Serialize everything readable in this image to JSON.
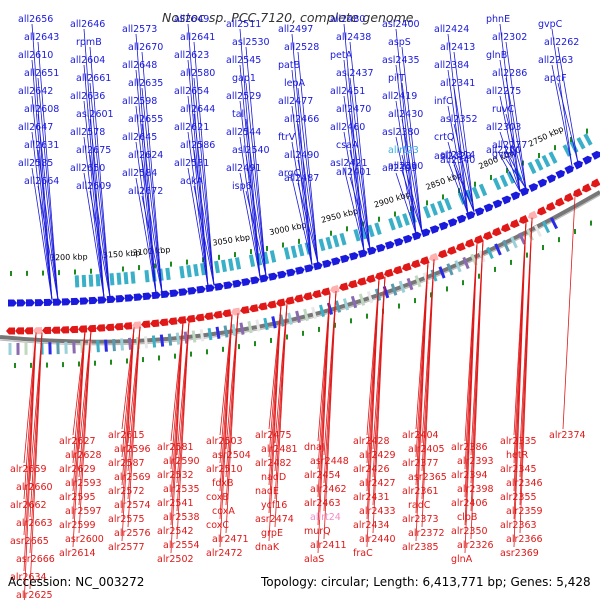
{
  "title": "Nostoc sp. PCC 7120, complete genome",
  "footer": {
    "accession": "Accession: NC_003272",
    "summary": "Topology: circular; Length: 6,413,771 bp; Genes: 5,428"
  },
  "colors": {
    "forward_strand": "#1a1adc",
    "reverse_strand": "#e01818",
    "rna_label": "#3ab0e0",
    "rna_label_reverse": "#f08cc8",
    "tick": "#1e8a1e",
    "backbone": "#777777"
  },
  "scale_labels": [
    "3200 kbp",
    "3150 kbp",
    "3100 kbp",
    "3050 kbp",
    "3000 kbp",
    "2950 kbp",
    "2900 kbp",
    "2850 kbp",
    "2800 kbp",
    "2750 kbp"
  ],
  "forward_genes": [
    "all2656",
    "all2643",
    "all2610",
    "all2651",
    "all2642",
    "all2608",
    "all2647",
    "all2631",
    "all2585",
    "all2664",
    "all2646",
    "rpmB",
    "all2604",
    "all2661",
    "all2636",
    "asl2601",
    "all2578",
    "all2675",
    "all2650",
    "all2609",
    "all2573",
    "all2670",
    "all2648",
    "all2635",
    "all2598",
    "all2655",
    "all2645",
    "all2624",
    "all2584",
    "all2672",
    "all2649",
    "all2641",
    "all2623",
    "all2580",
    "all2654",
    "all2644",
    "all2621",
    "all2586",
    "all2531",
    "ackA",
    "all2511",
    "asl2530",
    "all2545",
    "gap1",
    "all2529",
    "tal",
    "all2544",
    "asl2540",
    "all2491",
    "isp6",
    "all2497",
    "all2528",
    "patB",
    "lepA",
    "all2477",
    "all2466",
    "ftrV",
    "all2490",
    "argC",
    "all2487",
    "all2480",
    "all2438",
    "petA",
    "asl2437",
    "all2451",
    "all2470",
    "all2460",
    "csaA",
    "asl2421",
    "all2401",
    "asl2400",
    "aspS",
    "asl2435",
    "pilT",
    "all2419",
    "all2430",
    "asl2380",
    "allrt23",
    "all2399",
    "all2390",
    "all2424",
    "all2413",
    "all2384",
    "all2341",
    "infC",
    "asl2352",
    "crtQ",
    "all2314",
    "asl2329",
    "all2340",
    "phnE",
    "all2302",
    "glnB",
    "all2286",
    "all2275",
    "ruvC",
    "all2303",
    "all2277",
    "all2260",
    "gvpN",
    "gvpC",
    "all2262",
    "all2263",
    "apcF"
  ],
  "reverse_genes": [
    "alr2659",
    "alr2660",
    "alr2662",
    "alr2663",
    "asr2665",
    "asr2666",
    "alr2634",
    "alr2625",
    "alr2626",
    "alr2627",
    "alr2628",
    "alr2629",
    "alr2593",
    "alr2595",
    "alr2597",
    "alr2599",
    "asr2600",
    "alr2614",
    "alr2615",
    "alr2596",
    "alr2587",
    "alr2569",
    "alr2572",
    "alr2574",
    "alr2575",
    "alr2576",
    "alr2577",
    "alr2581",
    "alr2590",
    "alr2532",
    "alr2535",
    "alr2541",
    "alr2538",
    "alr2542",
    "alr2554",
    "alr2502",
    "alr2503",
    "asr2504",
    "alr2510",
    "fdxB",
    "coxB",
    "coxA",
    "coxC",
    "alr2471",
    "alr2472",
    "alr2475",
    "alr2481",
    "alr2482",
    "nadD",
    "nadE",
    "ycf16",
    "asr2474",
    "grpE",
    "dnaK",
    "dnaJ",
    "asr2448",
    "alr2454",
    "alr2462",
    "alr2463",
    "allrt24",
    "murQ",
    "alr2411",
    "alaS",
    "alr2428",
    "alr2429",
    "alr2426",
    "alr2427",
    "alr2431",
    "alr2433",
    "alr2434",
    "alr2440",
    "fraC",
    "alr2404",
    "alr2405",
    "alr2377",
    "asr2365",
    "alr2361",
    "radC",
    "alr2373",
    "alr2372",
    "alr2385",
    "alr2386",
    "alr2393",
    "alr2394",
    "alr2398",
    "alr2406",
    "clpB",
    "alr2350",
    "alr2326",
    "glnA",
    "alr2335",
    "hetR",
    "alr2345",
    "alr2346",
    "alr2355",
    "alr2359",
    "alr2363",
    "alr2366",
    "asr2369",
    "alr2374"
  ]
}
